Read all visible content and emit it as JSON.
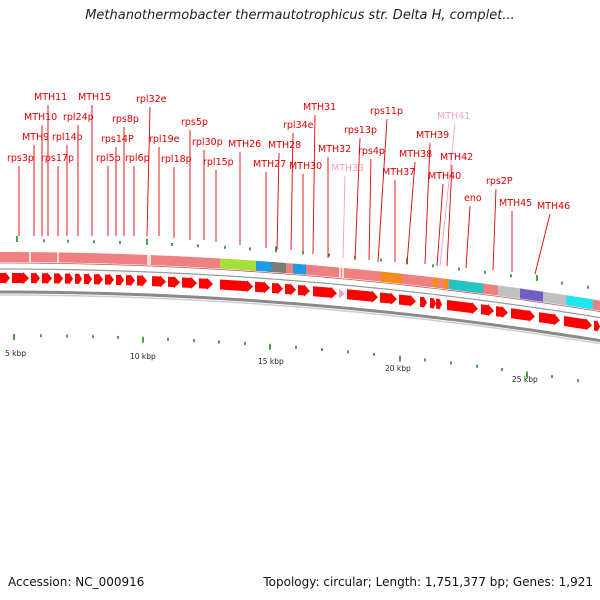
{
  "title": "Methanothermobacter thermautotrophicus str. Delta H, complet...",
  "footer": {
    "accession": "Accession: NC_000916",
    "topology": "Topology: circular; Length: 1,751,377 bp; Genes: 1,921"
  },
  "colors": {
    "label_red": "#e00000",
    "label_pink": "#f3a0c8",
    "gene_red": "#ff0000",
    "track_salmon": "#f08080",
    "tick_green": "#1e8a1e"
  },
  "scale_labels": [
    "5 kbp",
    "10 kbp",
    "15 kbp",
    "20 kbp",
    "25 kbp"
  ],
  "gene_labels": [
    {
      "text": "rps3p",
      "color": "red"
    },
    {
      "text": "MTH9",
      "color": "red"
    },
    {
      "text": "MTH10",
      "color": "red"
    },
    {
      "text": "MTH11",
      "color": "red"
    },
    {
      "text": "rps17p",
      "color": "red"
    },
    {
      "text": "rpl14p",
      "color": "red"
    },
    {
      "text": "rpl24p",
      "color": "red"
    },
    {
      "text": "MTH15",
      "color": "red"
    },
    {
      "text": "rpl5p",
      "color": "red"
    },
    {
      "text": "rps14P",
      "color": "red"
    },
    {
      "text": "rps8p",
      "color": "red"
    },
    {
      "text": "rpl6p",
      "color": "red"
    },
    {
      "text": "rpl32e",
      "color": "red"
    },
    {
      "text": "rpl19e",
      "color": "red"
    },
    {
      "text": "rpl18p",
      "color": "red"
    },
    {
      "text": "rps5p",
      "color": "red"
    },
    {
      "text": "rpl30p",
      "color": "red"
    },
    {
      "text": "rpl15p",
      "color": "red"
    },
    {
      "text": "MTH26",
      "color": "red"
    },
    {
      "text": "MTH27",
      "color": "red"
    },
    {
      "text": "MTH28",
      "color": "red"
    },
    {
      "text": "rpl34e",
      "color": "red"
    },
    {
      "text": "MTH30",
      "color": "red"
    },
    {
      "text": "MTH31",
      "color": "red"
    },
    {
      "text": "MTH32",
      "color": "red"
    },
    {
      "text": "MTH33",
      "color": "pink"
    },
    {
      "text": "rps13p",
      "color": "red"
    },
    {
      "text": "rps4p",
      "color": "red"
    },
    {
      "text": "rps11p",
      "color": "red"
    },
    {
      "text": "MTH37",
      "color": "red"
    },
    {
      "text": "MTH38",
      "color": "red"
    },
    {
      "text": "MTH39",
      "color": "red"
    },
    {
      "text": "MTH40",
      "color": "red"
    },
    {
      "text": "MTH41",
      "color": "pink"
    },
    {
      "text": "MTH42",
      "color": "red"
    },
    {
      "text": "eno",
      "color": "red"
    },
    {
      "text": "rps2P",
      "color": "red"
    },
    {
      "text": "MTH45",
      "color": "red"
    },
    {
      "text": "MTH46",
      "color": "red"
    }
  ],
  "feature_blocks": [
    {
      "name": "salmon-track",
      "color": "#f08080"
    },
    {
      "name": "lime-feature",
      "color": "#a4e03a"
    },
    {
      "name": "blue-feature",
      "color": "#1e9be6"
    },
    {
      "name": "gray-feature",
      "color": "#7a7a7a"
    },
    {
      "name": "orange-feature",
      "color": "#f28c1a"
    },
    {
      "name": "teal-feature",
      "color": "#23c4c4"
    },
    {
      "name": "purple-feature",
      "color": "#6e5fc6"
    },
    {
      "name": "cyan-feature",
      "color": "#1ee6f0"
    },
    {
      "name": "silver-feature",
      "color": "#c0c0c0"
    }
  ]
}
